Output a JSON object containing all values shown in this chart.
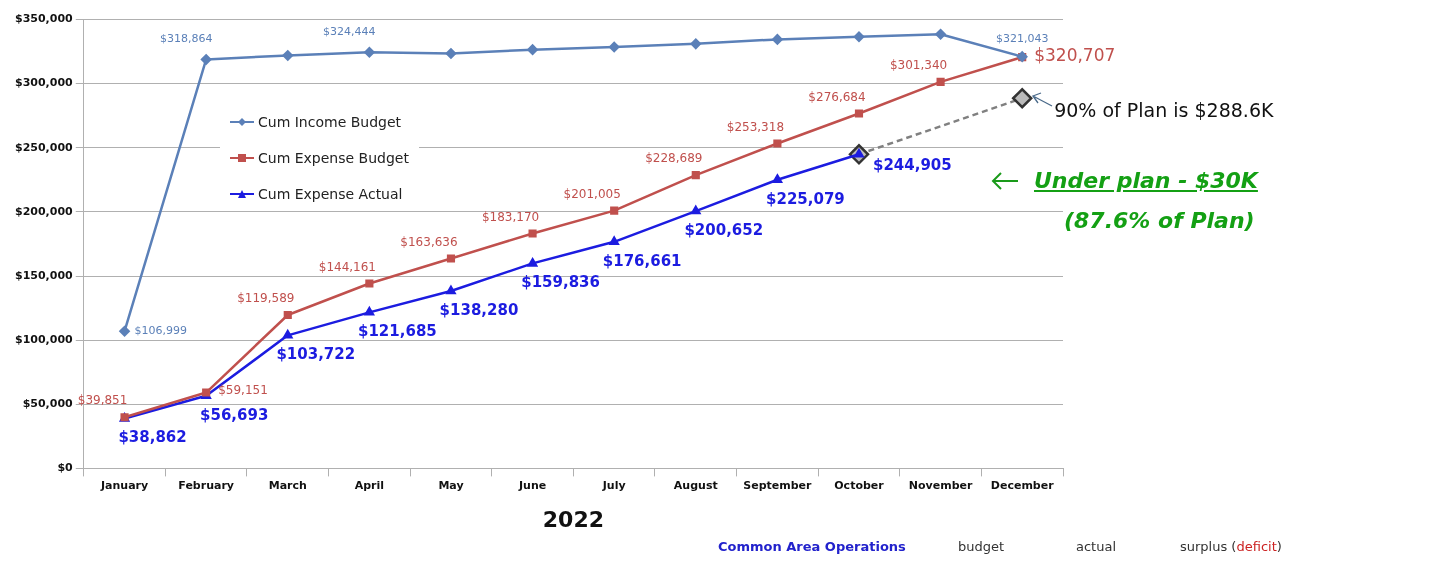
{
  "chart_data": {
    "type": "line",
    "xlabel": "2022",
    "categories": [
      "January",
      "February",
      "March",
      "April",
      "May",
      "June",
      "July",
      "August",
      "September",
      "October",
      "November",
      "December"
    ],
    "ylim": [
      0,
      350000
    ],
    "yticks": [
      {
        "value": 0,
        "label": "$0"
      },
      {
        "value": 50000,
        "label": "$50,000"
      },
      {
        "value": 100000,
        "label": "$100,000"
      },
      {
        "value": 150000,
        "label": "$150,000"
      },
      {
        "value": 200000,
        "label": "$200,000"
      },
      {
        "value": 250000,
        "label": "$250,000"
      },
      {
        "value": 300000,
        "label": "$300,000"
      },
      {
        "value": 350000,
        "label": "$350,000"
      }
    ],
    "grid": "y",
    "legend": "top left",
    "series": [
      {
        "name": "Cum Income Budget",
        "color": "#5b80b8",
        "marker": "diamond",
        "values": [
          106999,
          318864,
          322000,
          324444,
          323500,
          326500,
          328500,
          331000,
          334500,
          336500,
          338500,
          321043
        ],
        "value_labels": [
          "$106,999",
          "$318,864",
          null,
          "$324,444",
          null,
          null,
          null,
          null,
          null,
          null,
          null,
          "$321,043"
        ]
      },
      {
        "name": "Cum Expense Budget",
        "color": "#c0504d",
        "marker": "square",
        "values": [
          39851,
          59151,
          119589,
          144161,
          163636,
          183170,
          201005,
          228689,
          253318,
          276684,
          301340,
          320707
        ],
        "value_labels": [
          "$39,851",
          "$59,151",
          "$119,589",
          "$144,161",
          "$163,636",
          "$183,170",
          "$201,005",
          "$228,689",
          "$253,318",
          "$276,684",
          "$301,340",
          "$320,707"
        ]
      },
      {
        "name": "Cum Expense Actual",
        "color": "#1c1ce0",
        "marker": "triangle",
        "values": [
          38862,
          56693,
          103722,
          121685,
          138280,
          159836,
          176661,
          200652,
          225079,
          244905,
          null,
          null
        ],
        "value_labels": [
          "$38,862",
          "$56,693",
          "$103,722",
          "$121,685",
          "$138,280",
          "$159,836",
          "$176,661",
          "$200,652",
          "$225,079",
          "$244,905",
          null,
          null
        ]
      },
      {
        "color": "#808080",
        "marker": "diamond",
        "line_style": "dashed",
        "values": [
          null,
          null,
          null,
          null,
          null,
          null,
          null,
          null,
          null,
          244905,
          null,
          288600
        ]
      }
    ],
    "annotations": [
      {
        "text": "90% of Plan is $288.6K",
        "x": "December",
        "y": 288600
      },
      "Under plan - $30K",
      "(87.6% of Plan)",
      "Common Area Operations",
      "budget",
      "actual",
      "surplus (deficit)"
    ]
  }
}
